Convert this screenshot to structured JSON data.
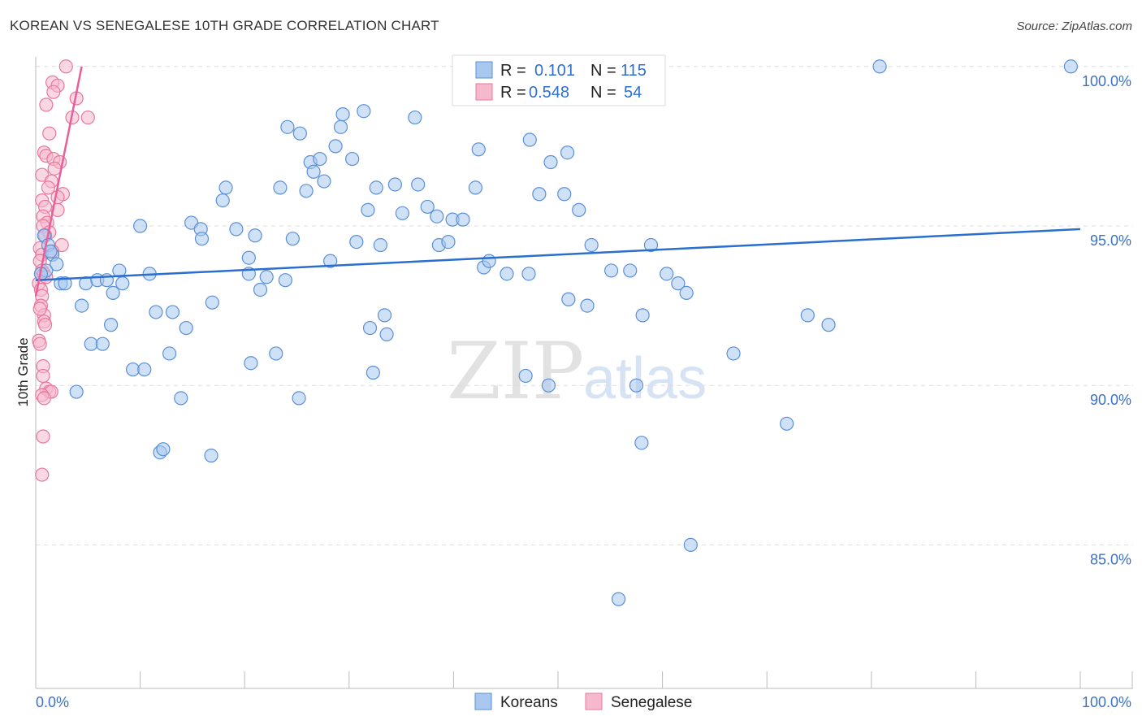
{
  "header": {
    "title": "KOREAN VS SENEGALESE 10TH GRADE CORRELATION CHART",
    "source": "Source: ZipAtlas.com"
  },
  "watermark": {
    "zip": "ZIP",
    "atlas": "atlas"
  },
  "colors": {
    "koreans_fill": "#a8c8f0",
    "koreans_stroke": "#5b8fd6",
    "koreans_line": "#2a6fcf",
    "senegalese_fill": "#f6b8cc",
    "senegalese_stroke": "#e8779c",
    "senegalese_line": "#e8609a",
    "tick_label": "#3c72c4",
    "grid": "#dddddd"
  },
  "legend": {
    "r_label": "R =",
    "n_label": "N =",
    "koreans": {
      "r": "0.101",
      "n": "115"
    },
    "senegalese": {
      "r": "0.548",
      "n": "54"
    }
  },
  "bottom_legend": {
    "koreans": "Koreans",
    "senegalese": "Senegalese"
  },
  "chart_data": {
    "type": "scatter",
    "title": "KOREAN VS SENEGALESE 10TH GRADE CORRELATION CHART",
    "xlabel": "",
    "ylabel": "10th Grade",
    "xlim": [
      0,
      100
    ],
    "ylim": [
      80.5,
      100.3
    ],
    "y_ticks": [
      85,
      90,
      95,
      100
    ],
    "y_tick_labels": [
      "85.0%",
      "90.0%",
      "95.0%",
      "100.0%"
    ],
    "x_tick_labels": [
      "0.0%",
      "100.0%"
    ],
    "grid": true,
    "series": [
      {
        "name": "Koreans",
        "trend": {
          "x": [
            0,
            100
          ],
          "y": [
            93.3,
            94.9
          ]
        },
        "points": [
          [
            0.8,
            94.7
          ],
          [
            1.2,
            94.4
          ],
          [
            1.6,
            94.1
          ],
          [
            2.0,
            93.8
          ],
          [
            1.0,
            93.6
          ],
          [
            2.4,
            93.2
          ],
          [
            1.4,
            94.2
          ],
          [
            0.5,
            93.5
          ],
          [
            2.8,
            93.2
          ],
          [
            4.8,
            93.2
          ],
          [
            5.9,
            93.3
          ],
          [
            6.8,
            93.3
          ],
          [
            8.3,
            93.2
          ],
          [
            8.0,
            93.6
          ],
          [
            10.9,
            93.5
          ],
          [
            7.4,
            92.9
          ],
          [
            4.4,
            92.5
          ],
          [
            7.2,
            91.9
          ],
          [
            5.3,
            91.3
          ],
          [
            6.4,
            91.3
          ],
          [
            11.5,
            92.3
          ],
          [
            13.1,
            92.3
          ],
          [
            14.4,
            91.8
          ],
          [
            12.8,
            91.0
          ],
          [
            9.3,
            90.5
          ],
          [
            10.4,
            90.5
          ],
          [
            3.9,
            89.8
          ],
          [
            13.9,
            89.6
          ],
          [
            11.9,
            87.9
          ],
          [
            12.2,
            88.0
          ],
          [
            16.8,
            87.8
          ],
          [
            10.0,
            95.0
          ],
          [
            14.9,
            95.1
          ],
          [
            15.8,
            94.9
          ],
          [
            15.9,
            94.6
          ],
          [
            18.2,
            96.2
          ],
          [
            17.9,
            95.8
          ],
          [
            19.2,
            94.9
          ],
          [
            20.4,
            94.0
          ],
          [
            21.0,
            94.7
          ],
          [
            23.4,
            96.2
          ],
          [
            24.6,
            94.6
          ],
          [
            25.9,
            96.1
          ],
          [
            20.4,
            93.5
          ],
          [
            21.5,
            93.0
          ],
          [
            22.1,
            93.4
          ],
          [
            23.9,
            93.3
          ],
          [
            16.9,
            92.6
          ],
          [
            20.6,
            90.7
          ],
          [
            23.0,
            91.0
          ],
          [
            25.2,
            89.6
          ],
          [
            24.1,
            98.1
          ],
          [
            25.3,
            97.9
          ],
          [
            26.3,
            97.0
          ],
          [
            26.6,
            96.7
          ],
          [
            27.2,
            97.1
          ],
          [
            27.6,
            96.4
          ],
          [
            28.7,
            97.5
          ],
          [
            29.2,
            98.1
          ],
          [
            29.4,
            98.5
          ],
          [
            30.3,
            97.1
          ],
          [
            31.4,
            98.6
          ],
          [
            30.7,
            94.5
          ],
          [
            28.2,
            93.9
          ],
          [
            31.8,
            95.5
          ],
          [
            32.6,
            96.2
          ],
          [
            34.4,
            96.3
          ],
          [
            35.1,
            95.4
          ],
          [
            33.0,
            94.4
          ],
          [
            33.4,
            92.2
          ],
          [
            32.0,
            91.8
          ],
          [
            33.6,
            91.6
          ],
          [
            32.3,
            90.4
          ],
          [
            36.3,
            98.4
          ],
          [
            36.6,
            96.3
          ],
          [
            37.5,
            95.6
          ],
          [
            38.4,
            95.3
          ],
          [
            38.6,
            94.4
          ],
          [
            39.5,
            94.5
          ],
          [
            39.9,
            95.2
          ],
          [
            40.9,
            95.2
          ],
          [
            42.1,
            96.2
          ],
          [
            42.4,
            97.4
          ],
          [
            42.9,
            93.7
          ],
          [
            43.4,
            93.9
          ],
          [
            45.1,
            93.5
          ],
          [
            47.3,
            97.7
          ],
          [
            48.2,
            96.0
          ],
          [
            49.3,
            97.0
          ],
          [
            50.6,
            96.0
          ],
          [
            50.9,
            97.3
          ],
          [
            47.2,
            93.5
          ],
          [
            46.9,
            90.3
          ],
          [
            49.1,
            90.0
          ],
          [
            52.0,
            95.5
          ],
          [
            53.2,
            94.4
          ],
          [
            51.0,
            92.7
          ],
          [
            52.8,
            92.5
          ],
          [
            55.1,
            93.6
          ],
          [
            56.9,
            93.6
          ],
          [
            58.9,
            94.4
          ],
          [
            58.1,
            92.2
          ],
          [
            57.5,
            90.0
          ],
          [
            58.0,
            88.2
          ],
          [
            60.4,
            93.5
          ],
          [
            61.5,
            93.2
          ],
          [
            62.3,
            92.9
          ],
          [
            62.7,
            85.0
          ],
          [
            66.8,
            91.0
          ],
          [
            73.9,
            92.2
          ],
          [
            75.9,
            91.9
          ],
          [
            71.9,
            88.8
          ],
          [
            80.8,
            100.0
          ],
          [
            99.1,
            100.0
          ],
          [
            55.8,
            83.3
          ]
        ]
      },
      {
        "name": "Senegalese",
        "trend": {
          "x": [
            0,
            4.4
          ],
          "y": [
            92.8,
            100.0
          ]
        },
        "points": [
          [
            2.9,
            100.0
          ],
          [
            1.6,
            99.5
          ],
          [
            2.1,
            99.4
          ],
          [
            1.7,
            99.2
          ],
          [
            3.9,
            99.0
          ],
          [
            1.0,
            98.8
          ],
          [
            3.5,
            98.4
          ],
          [
            5.0,
            98.4
          ],
          [
            1.3,
            97.9
          ],
          [
            0.8,
            97.3
          ],
          [
            1.0,
            97.2
          ],
          [
            1.7,
            97.1
          ],
          [
            2.3,
            97.0
          ],
          [
            0.6,
            96.6
          ],
          [
            1.5,
            96.4
          ],
          [
            1.2,
            96.2
          ],
          [
            2.6,
            96.0
          ],
          [
            2.1,
            95.9
          ],
          [
            0.6,
            95.8
          ],
          [
            0.9,
            95.6
          ],
          [
            0.7,
            95.3
          ],
          [
            1.1,
            95.1
          ],
          [
            0.7,
            95.0
          ],
          [
            1.3,
            94.8
          ],
          [
            0.9,
            94.7
          ],
          [
            2.5,
            94.4
          ],
          [
            0.4,
            94.3
          ],
          [
            0.6,
            94.1
          ],
          [
            0.4,
            93.9
          ],
          [
            0.6,
            93.6
          ],
          [
            0.8,
            93.5
          ],
          [
            0.3,
            93.2
          ],
          [
            0.5,
            93.0
          ],
          [
            0.6,
            92.8
          ],
          [
            0.5,
            92.5
          ],
          [
            0.8,
            92.2
          ],
          [
            0.8,
            92.0
          ],
          [
            0.3,
            91.4
          ],
          [
            0.4,
            91.3
          ],
          [
            0.7,
            90.6
          ],
          [
            0.7,
            90.3
          ],
          [
            1.0,
            89.9
          ],
          [
            1.3,
            89.8
          ],
          [
            1.5,
            89.8
          ],
          [
            0.6,
            89.7
          ],
          [
            0.8,
            89.6
          ],
          [
            0.7,
            88.4
          ],
          [
            0.6,
            87.2
          ],
          [
            0.4,
            92.4
          ],
          [
            1.0,
            93.4
          ],
          [
            1.6,
            94.2
          ],
          [
            0.9,
            91.9
          ],
          [
            2.1,
            95.5
          ],
          [
            1.8,
            96.8
          ]
        ]
      }
    ]
  },
  "y_axis_title": "10th Grade"
}
